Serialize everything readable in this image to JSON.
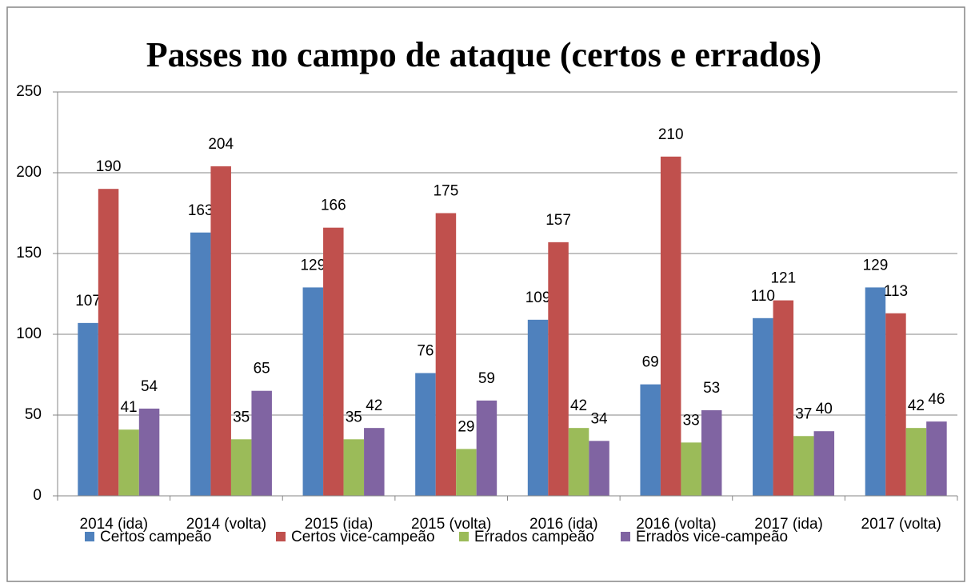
{
  "chart_data": {
    "type": "bar",
    "title": "Passes no campo de ataque (certos e errados)",
    "categories": [
      "2014 (ida)",
      "2014 (volta)",
      "2015 (ida)",
      "2015 (volta)",
      "2016 (ida)",
      "2016 (volta)",
      "2017 (ida)",
      "2017 (volta)"
    ],
    "series": [
      {
        "name": "Certos campeão",
        "color": "#4f81bd",
        "values": [
          107,
          163,
          129,
          76,
          109,
          69,
          110,
          129
        ]
      },
      {
        "name": "Certos vice-campeão",
        "color": "#c0504d",
        "values": [
          190,
          204,
          166,
          175,
          157,
          210,
          121,
          113
        ]
      },
      {
        "name": "Errados campeão",
        "color": "#9bbb59",
        "values": [
          41,
          35,
          35,
          29,
          42,
          33,
          37,
          42
        ]
      },
      {
        "name": "Errados vice-campeão",
        "color": "#8064a2",
        "values": [
          54,
          65,
          42,
          59,
          34,
          53,
          40,
          46
        ]
      }
    ],
    "ylim": [
      0,
      250
    ],
    "yticks": [
      0,
      50,
      100,
      150,
      200,
      250
    ],
    "grid": true,
    "legend": "bottom"
  }
}
